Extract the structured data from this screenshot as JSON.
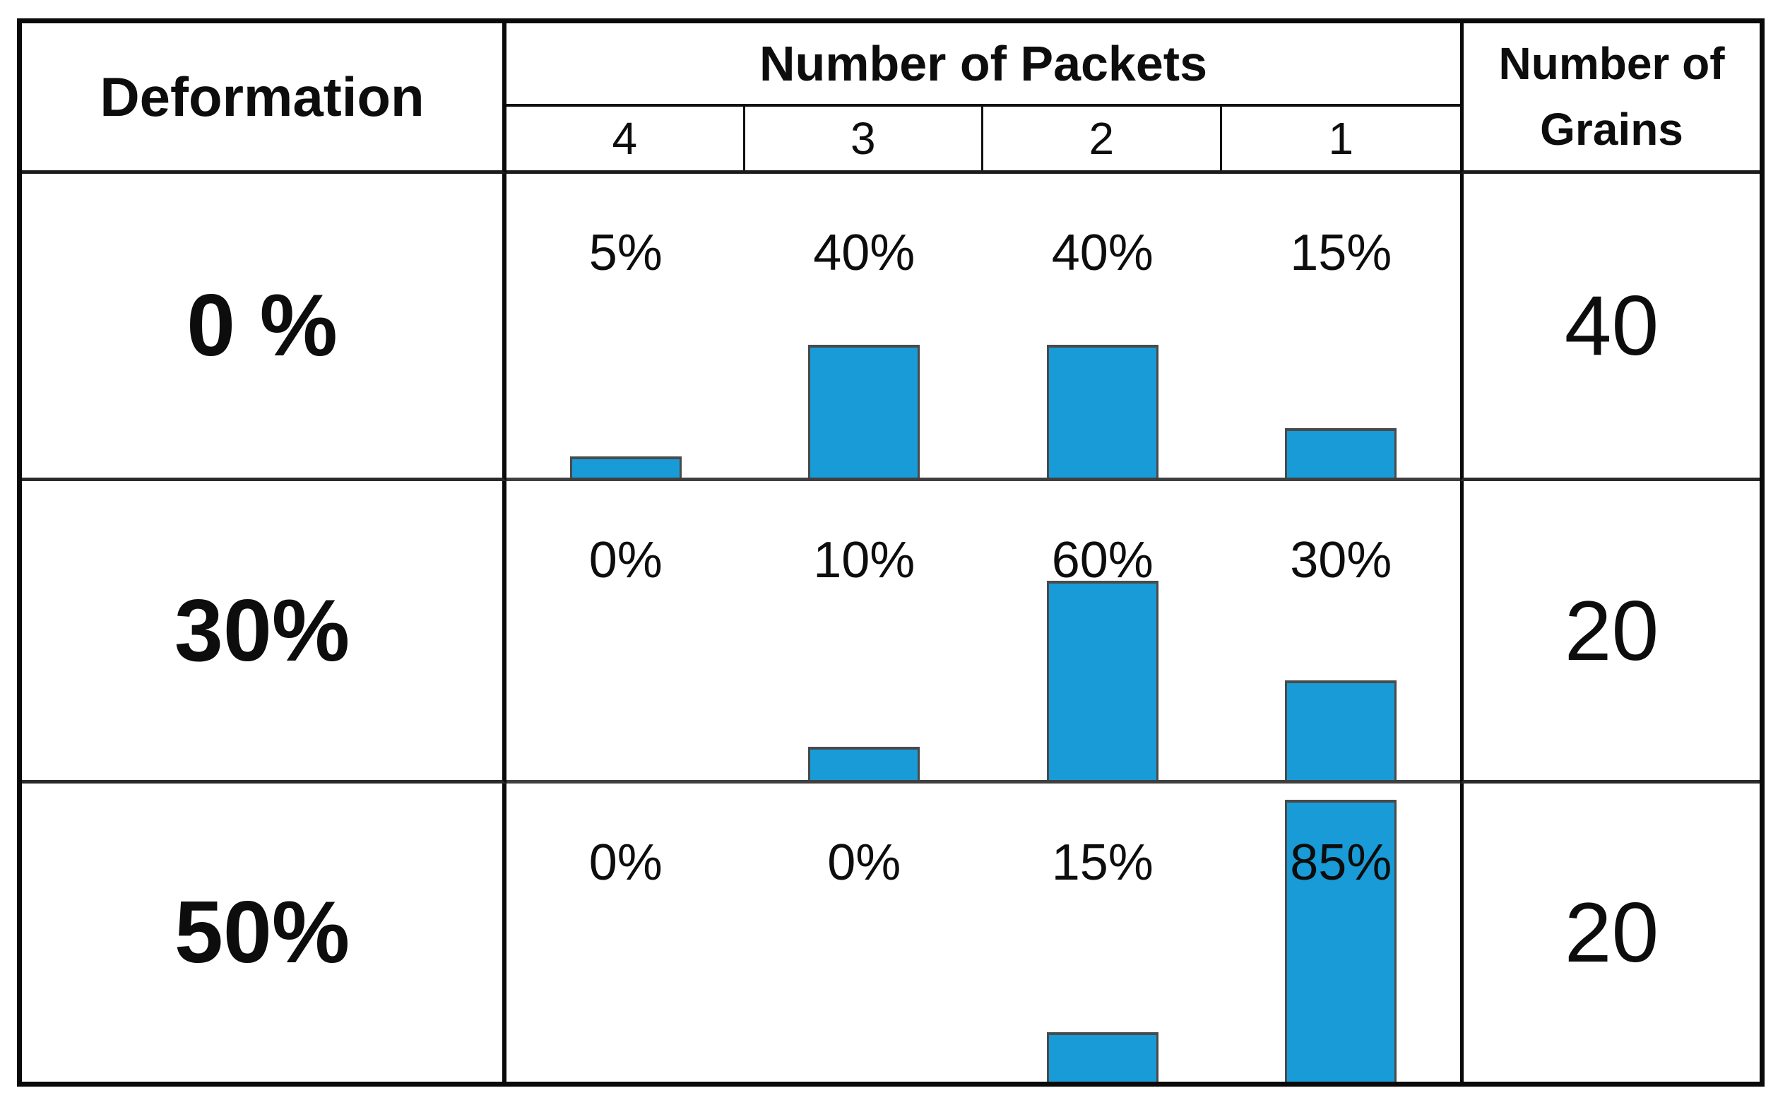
{
  "figure": {
    "header": {
      "deformation_label": "Deformation",
      "packets_title": "Number of Packets",
      "packet_counts": [
        "4",
        "3",
        "2",
        "1"
      ],
      "grains_title_lines": [
        "Number of",
        "Grains"
      ]
    },
    "rows": [
      {
        "deformation": "0 %",
        "percent_labels": [
          "5%",
          "40%",
          "40%",
          "15%"
        ],
        "grains": "40"
      },
      {
        "deformation": "30%",
        "percent_labels": [
          "0%",
          "10%",
          "60%",
          "30%"
        ],
        "grains": "20"
      },
      {
        "deformation": "50%",
        "percent_labels": [
          "0%",
          "0%",
          "15%",
          "85%"
        ],
        "grains": "20"
      }
    ]
  },
  "chart_data": {
    "type": "bar",
    "categories_label": "Number of Packets",
    "categories": [
      "4",
      "3",
      "2",
      "1"
    ],
    "value_unit": "%",
    "ylim": [
      0,
      100
    ],
    "series": [
      {
        "name": "0 %",
        "values": [
          5,
          40,
          40,
          15
        ],
        "number_of_grains": 40
      },
      {
        "name": "30%",
        "values": [
          0,
          10,
          60,
          30
        ],
        "number_of_grains": 20
      },
      {
        "name": "50%",
        "values": [
          0,
          0,
          15,
          85
        ],
        "number_of_grains": 20
      }
    ],
    "legend": "none",
    "grid": "off"
  },
  "colors": {
    "bar_fill": "#189bd6",
    "bar_outline": "#4a4a4a",
    "border": "#0a0a0a",
    "background": "#ffffff"
  }
}
